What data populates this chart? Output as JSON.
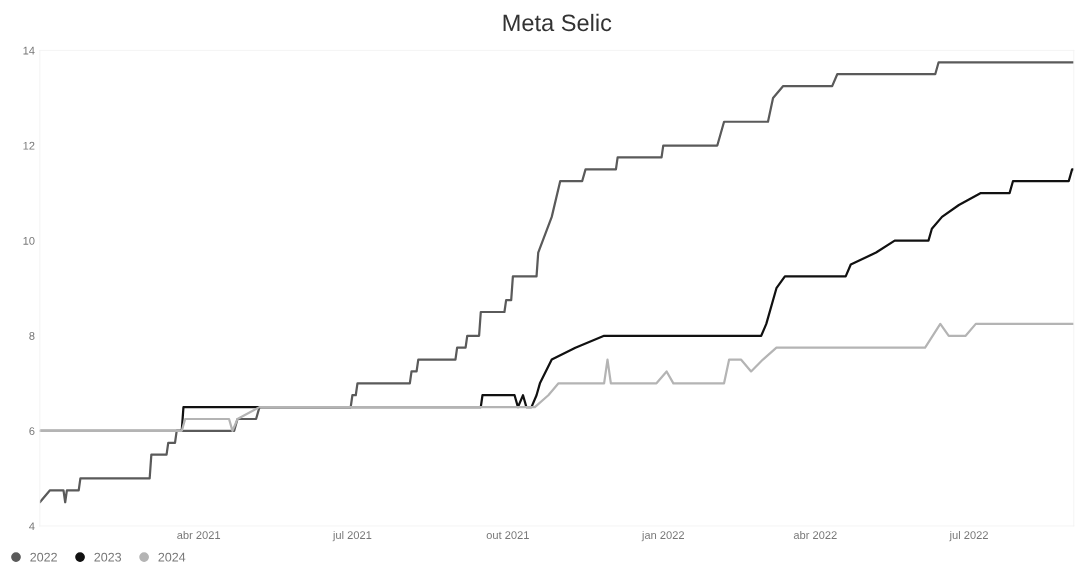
{
  "chart_data": {
    "type": "line",
    "title": "Meta Selic",
    "xlim": [
      "2020-12-28",
      "2022-09-01"
    ],
    "ylim": [
      4,
      14
    ],
    "yticks": [
      4,
      6,
      8,
      10,
      12,
      14
    ],
    "xticks": [
      {
        "value": "2021-04-01",
        "label": "abr 2021"
      },
      {
        "value": "2021-07-01",
        "label": "jul 2021"
      },
      {
        "value": "2021-10-01",
        "label": "out 2021"
      },
      {
        "value": "2022-01-01",
        "label": "jan 2022"
      },
      {
        "value": "2022-04-01",
        "label": "abr 2022"
      },
      {
        "value": "2022-07-01",
        "label": "jul 2022"
      }
    ],
    "grid": false,
    "legend": "bottom left",
    "marker": "none",
    "line_style": "solid",
    "series": [
      {
        "name": "2022",
        "color": "#5a5a5a",
        "x": [
          "2020-12-28",
          "2021-01-03",
          "2021-01-11",
          "2021-01-12",
          "2021-01-13",
          "2021-01-20",
          "2021-01-21",
          "2021-03-03",
          "2021-03-04",
          "2021-03-13",
          "2021-03-14",
          "2021-03-18",
          "2021-03-19",
          "2021-04-22",
          "2021-04-24",
          "2021-05-05",
          "2021-05-07",
          "2021-06-30",
          "2021-07-01",
          "2021-07-03",
          "2021-07-04",
          "2021-08-04",
          "2021-08-05",
          "2021-08-08",
          "2021-08-09",
          "2021-08-31",
          "2021-09-01",
          "2021-09-06",
          "2021-09-07",
          "2021-09-14",
          "2021-09-15",
          "2021-09-29",
          "2021-09-30",
          "2021-10-03",
          "2021-10-04",
          "2021-10-18",
          "2021-10-19",
          "2021-10-27",
          "2021-11-01",
          "2021-11-14",
          "2021-11-16",
          "2021-12-04",
          "2021-12-05",
          "2021-12-31",
          "2022-01-01",
          "2022-02-02",
          "2022-02-06",
          "2022-03-04",
          "2022-03-07",
          "2022-03-13",
          "2022-04-11",
          "2022-04-14",
          "2022-06-11",
          "2022-06-13",
          "2022-09-01"
        ],
        "values": [
          4.5,
          4.75,
          4.75,
          4.5,
          4.75,
          4.75,
          5.0,
          5.0,
          5.5,
          5.5,
          5.75,
          5.75,
          6.0,
          6.0,
          6.25,
          6.25,
          6.5,
          6.5,
          6.75,
          6.75,
          7.0,
          7.0,
          7.25,
          7.25,
          7.5,
          7.5,
          7.75,
          7.75,
          8.0,
          8.0,
          8.5,
          8.5,
          8.75,
          8.75,
          9.25,
          9.25,
          9.75,
          10.5,
          11.25,
          11.25,
          11.5,
          11.5,
          11.75,
          11.75,
          12.0,
          12.0,
          12.5,
          12.5,
          13.0,
          13.25,
          13.25,
          13.5,
          13.5,
          13.75,
          13.75
        ]
      },
      {
        "name": "2023",
        "color": "#111111",
        "x": [
          "2020-12-28",
          "2021-03-22",
          "2021-03-23",
          "2021-09-15",
          "2021-09-16",
          "2021-10-05",
          "2021-10-07",
          "2021-10-10",
          "2021-10-12",
          "2021-10-15",
          "2021-10-18",
          "2021-10-20",
          "2021-10-27",
          "2021-11-10",
          "2021-11-27",
          "2022-02-28",
          "2022-03-03",
          "2022-03-09",
          "2022-03-14",
          "2022-04-19",
          "2022-04-22",
          "2022-05-07",
          "2022-05-18",
          "2022-06-07",
          "2022-06-09",
          "2022-06-15",
          "2022-06-25",
          "2022-07-08",
          "2022-07-25",
          "2022-07-27",
          "2022-08-29",
          "2022-08-31",
          "2022-09-01"
        ],
        "values": [
          6.0,
          6.0,
          6.5,
          6.5,
          6.75,
          6.75,
          6.5,
          6.75,
          6.5,
          6.5,
          6.75,
          7.0,
          7.5,
          7.75,
          8.0,
          8.0,
          8.25,
          9.0,
          9.25,
          9.25,
          9.5,
          9.75,
          10.0,
          10.0,
          10.25,
          10.5,
          10.75,
          11.0,
          11.0,
          11.25,
          11.25,
          11.5,
          11.5
        ]
      },
      {
        "name": "2024",
        "color": "#b4b4b4",
        "x": [
          "2020-12-28",
          "2021-03-22",
          "2021-03-24",
          "2021-04-19",
          "2021-04-21",
          "2021-04-24",
          "2021-05-07",
          "2021-10-17",
          "2021-10-25",
          "2021-10-31",
          "2021-11-27",
          "2021-11-29",
          "2021-12-01",
          "2021-12-28",
          "2022-01-03",
          "2022-01-07",
          "2022-01-11",
          "2022-02-06",
          "2022-02-09",
          "2022-02-16",
          "2022-02-22",
          "2022-03-01",
          "2022-03-09",
          "2022-06-05",
          "2022-06-14",
          "2022-06-19",
          "2022-06-29",
          "2022-07-05",
          "2022-09-01"
        ],
        "values": [
          6.0,
          6.0,
          6.25,
          6.25,
          6.0,
          6.25,
          6.5,
          6.5,
          6.75,
          7.0,
          7.0,
          7.5,
          7.0,
          7.0,
          7.25,
          7.0,
          7.0,
          7.0,
          7.5,
          7.5,
          7.25,
          7.5,
          7.75,
          7.75,
          8.25,
          8.0,
          8.0,
          8.25,
          8.25
        ]
      }
    ]
  }
}
